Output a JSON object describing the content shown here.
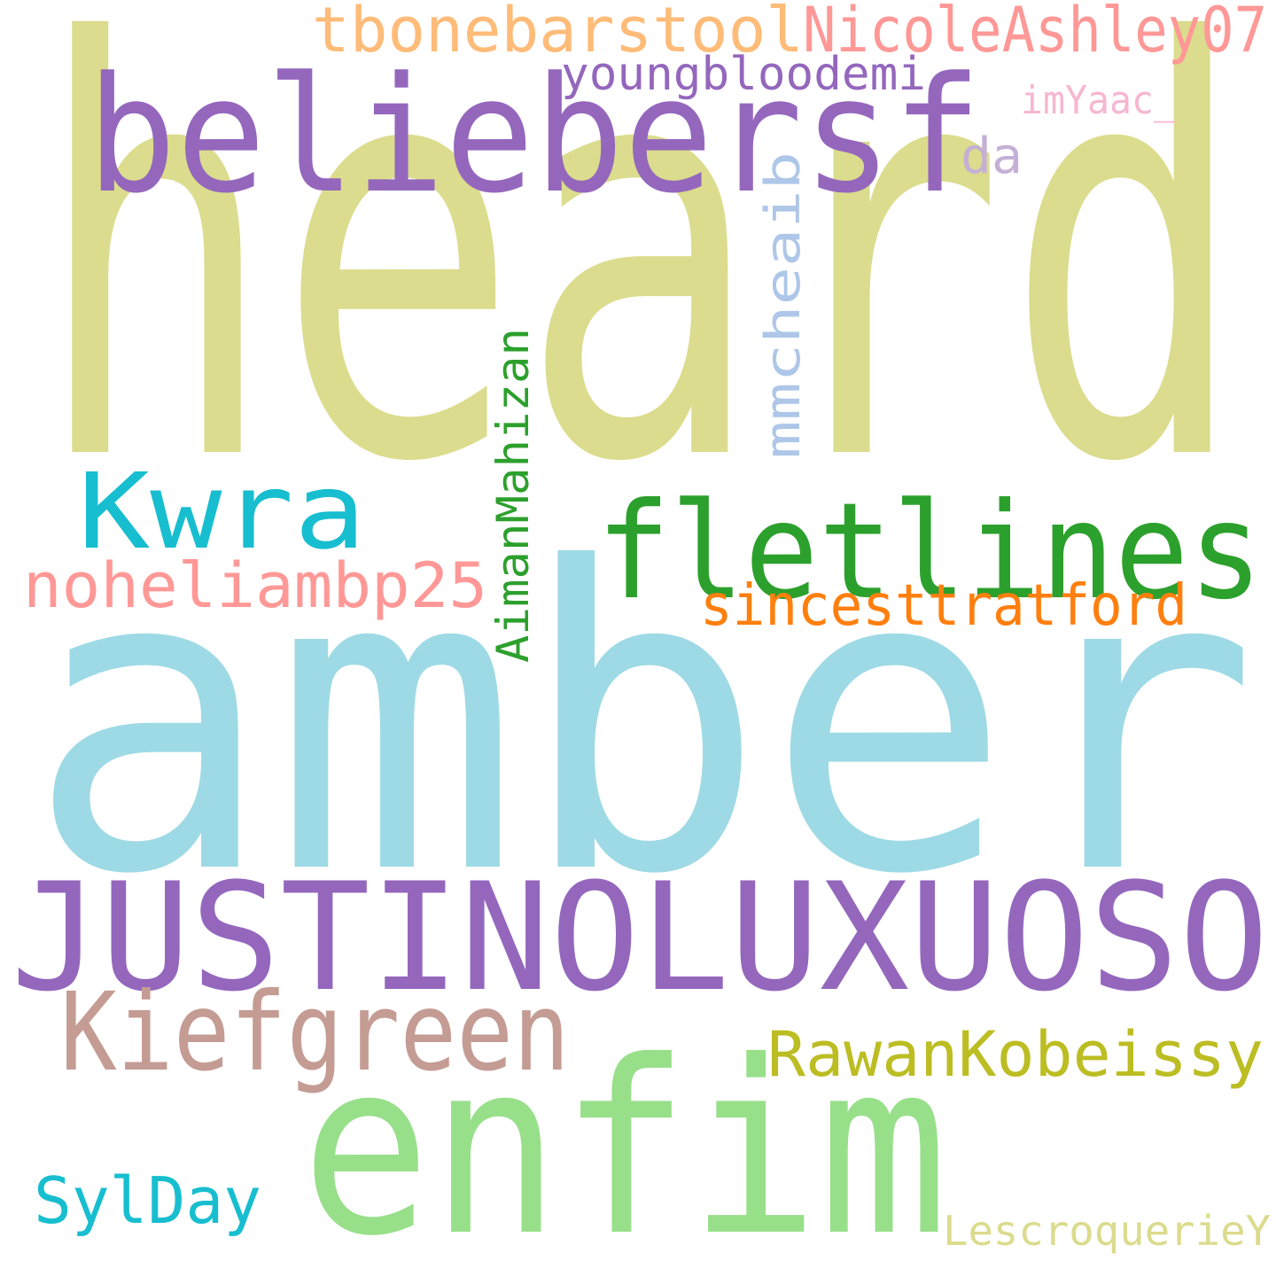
{
  "words": [
    {
      "text": "heard",
      "color": "#dbdc8d"
    },
    {
      "text": "amber",
      "color": "#9edae5"
    },
    {
      "text": "beliebersf",
      "color": "#9467bd"
    },
    {
      "text": "JUSTINOLUXUOSO",
      "color": "#9467bd"
    },
    {
      "text": "enfim",
      "color": "#98df8a"
    },
    {
      "text": "fletlines",
      "color": "#2ca02c"
    },
    {
      "text": "Kwra",
      "color": "#17becf"
    },
    {
      "text": "Kiefgreen",
      "color": "#c49c94"
    },
    {
      "text": "tbonebarstool",
      "color": "#ffbb78"
    },
    {
      "text": "NicoleAshley07",
      "color": "#ff9896"
    },
    {
      "text": "youngbloodemi",
      "color": "#9467bd"
    },
    {
      "text": "imYaac_",
      "color": "#f7b6d2"
    },
    {
      "text": "da",
      "color": "#c5b0d5"
    },
    {
      "text": "mmcheaib",
      "color": "#aec7e8"
    },
    {
      "text": "AimanMahizan",
      "color": "#2ca02c"
    },
    {
      "text": "noheliambp25",
      "color": "#ff9896"
    },
    {
      "text": "sincesttratford",
      "color": "#ff7f0e"
    },
    {
      "text": "RawanKobeissy",
      "color": "#bcbd22"
    },
    {
      "text": "SylDay",
      "color": "#17becf"
    },
    {
      "text": "LescroquerieY",
      "color": "#dbdb8d"
    }
  ]
}
